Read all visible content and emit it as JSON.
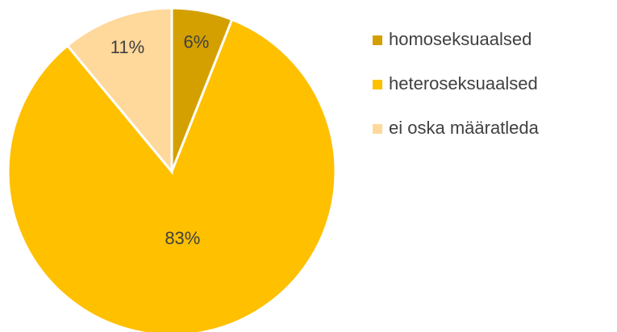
{
  "chart_data": {
    "type": "pie",
    "categories": [
      "homoseksuaalsed",
      "heteroseksuaalsed",
      "ei oska määratleda"
    ],
    "values": [
      6,
      83,
      11
    ],
    "value_labels": [
      "6%",
      "83%",
      "11%"
    ],
    "colors": [
      "#D4A000",
      "#FFC000",
      "#FFD89B"
    ],
    "legend": "right"
  }
}
